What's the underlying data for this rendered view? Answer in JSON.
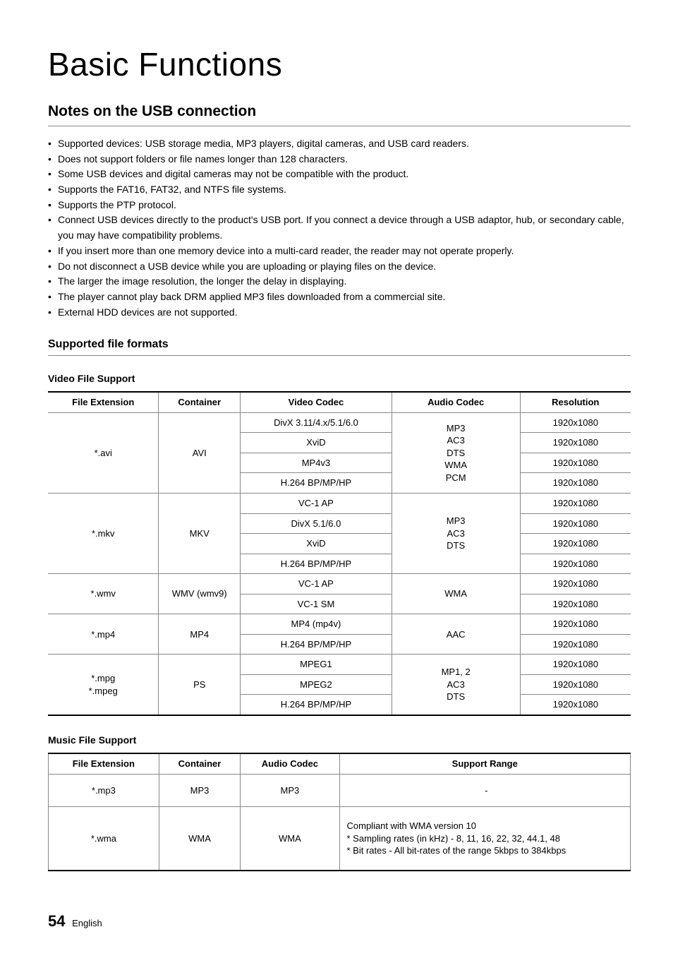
{
  "page_title": "Basic Functions",
  "section_title": "Notes on the USB connection",
  "notes": [
    "Supported devices: USB storage media, MP3 players, digital cameras, and USB card readers.",
    "Does not support folders or file names longer than 128 characters.",
    "Some USB devices and digital cameras may not be compatible with the product.",
    "Supports the FAT16, FAT32, and NTFS file systems.",
    "Supports the PTP protocol.",
    "Connect USB devices directly to the product's USB port. If you connect a device through a USB adaptor, hub, or secondary cable, you may have compatibility problems.",
    "If you insert more than one memory device into a multi-card reader, the reader may not operate properly.",
    "Do not disconnect a USB device while you are uploading or playing files on the device.",
    "The larger the image resolution, the longer the delay in displaying.",
    "The player cannot play back DRM applied MP3 files downloaded from a commercial site.",
    "External HDD devices are not supported."
  ],
  "sub_title": "Supported file formats",
  "video_table": {
    "title": "Video File Support",
    "headers": [
      "File Extension",
      "Container",
      "Video Codec",
      "Audio Codec",
      "Resolution"
    ],
    "col_widths": [
      "19%",
      "14%",
      "26%",
      "22%",
      "19%"
    ],
    "rows": [
      {
        "ext": "*.avi",
        "ext_rs": 4,
        "cont": "AVI",
        "cont_rs": 4,
        "vids": [
          "DivX 3.11/4.x/5.1/6.0",
          "XviD",
          "MP4v3",
          "H.264 BP/MP/HP"
        ],
        "aud": "MP3\nAC3\nDTS\nWMA\nPCM",
        "aud_rs": 4,
        "res": [
          "1920x1080",
          "1920x1080",
          "1920x1080",
          "1920x1080"
        ]
      },
      {
        "ext": "*.mkv",
        "ext_rs": 4,
        "cont": "MKV",
        "cont_rs": 4,
        "vids": [
          "VC-1 AP",
          "DivX 5.1/6.0",
          "XviD",
          "H.264 BP/MP/HP"
        ],
        "aud": "MP3\nAC3\nDTS",
        "aud_rs": 4,
        "res": [
          "1920x1080",
          "1920x1080",
          "1920x1080",
          "1920x1080"
        ]
      },
      {
        "ext": "*.wmv",
        "ext_rs": 2,
        "cont": "WMV (wmv9)",
        "cont_rs": 2,
        "vids": [
          "VC-1 AP",
          "VC-1 SM"
        ],
        "aud": "WMA",
        "aud_rs": 2,
        "res": [
          "1920x1080",
          "1920x1080"
        ]
      },
      {
        "ext": "*.mp4",
        "ext_rs": 2,
        "cont": "MP4",
        "cont_rs": 2,
        "vids": [
          "MP4 (mp4v)",
          "H.264 BP/MP/HP"
        ],
        "aud": "AAC",
        "aud_rs": 2,
        "res": [
          "1920x1080",
          "1920x1080"
        ]
      },
      {
        "ext": "*.mpg\n*.mpeg",
        "ext_rs": 3,
        "cont": "PS",
        "cont_rs": 3,
        "vids": [
          "MPEG1",
          "MPEG2",
          "H.264 BP/MP/HP"
        ],
        "aud": "MP1, 2\nAC3\nDTS",
        "aud_rs": 3,
        "res": [
          "1920x1080",
          "1920x1080",
          "1920x1080"
        ]
      }
    ]
  },
  "music_table": {
    "title": "Music File Support",
    "headers": [
      "File Extension",
      "Container",
      "Audio Codec",
      "Support Range"
    ],
    "col_widths": [
      "19%",
      "14%",
      "17%",
      "50%"
    ],
    "rows": [
      {
        "ext": "*.mp3",
        "cont": "MP3",
        "aud": "MP3",
        "sup": "-",
        "pad": "14px"
      },
      {
        "ext": "*.wma",
        "cont": "WMA",
        "aud": "WMA",
        "sup": "Compliant with WMA version 10\n* Sampling rates (in kHz) - 8, 11, 16, 22, 32, 44.1, 48\n* Bit rates - All bit-rates of the range 5kbps to 384kbps",
        "pad": "18px"
      }
    ]
  },
  "footer": {
    "page": "54",
    "lang": "English"
  }
}
